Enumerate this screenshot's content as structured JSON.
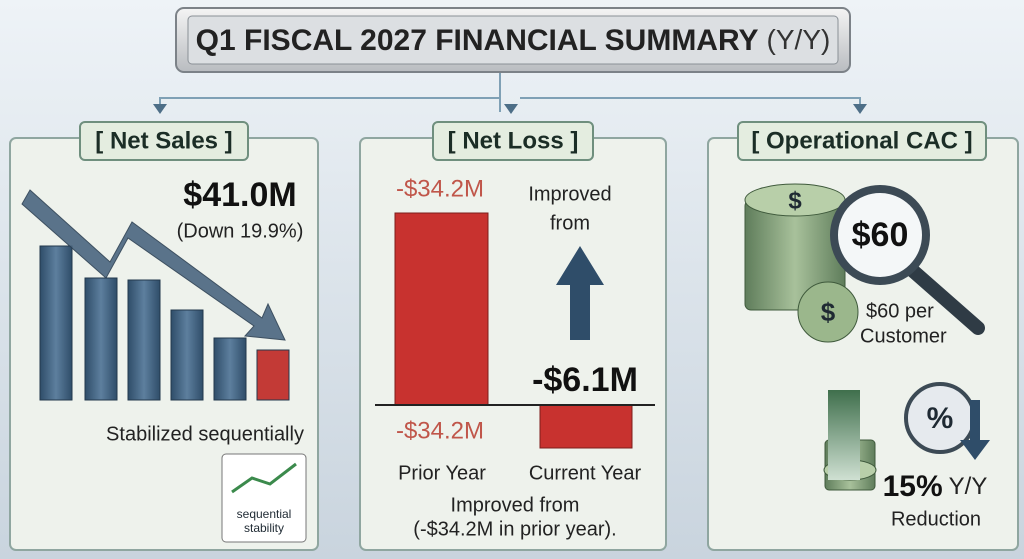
{
  "title": "Q1 FISCAL 2027 FINANCIAL SUMMARY",
  "title_suffix": "(Y/Y)",
  "net_sales": {
    "heading": "[ Net Sales ]",
    "value": "$41.0M",
    "change": "(Down 19.9%)",
    "note": "Stabilized sequentially",
    "badge": [
      "sequential",
      "stability"
    ]
  },
  "net_loss": {
    "heading": "[ Net Loss ]",
    "prior_top_label": "-$34.2M",
    "improved": [
      "Improved",
      "from"
    ],
    "current_label": "-$6.1M",
    "prior_bottom_label": "-$34.2M",
    "categories": [
      "Prior Year",
      "Current Year"
    ],
    "footnote": [
      "Improved from",
      "(-$34.2M in prior year)."
    ]
  },
  "operational_cac": {
    "heading": "[ Operational CAC ]",
    "coin_symbol": "$",
    "value": "$60",
    "per_customer": [
      "$60 per",
      "Customer"
    ],
    "percent_icon": "%",
    "reduction_value": "15%",
    "reduction_suffix": "Y/Y",
    "reduction_text": "Reduction"
  }
}
